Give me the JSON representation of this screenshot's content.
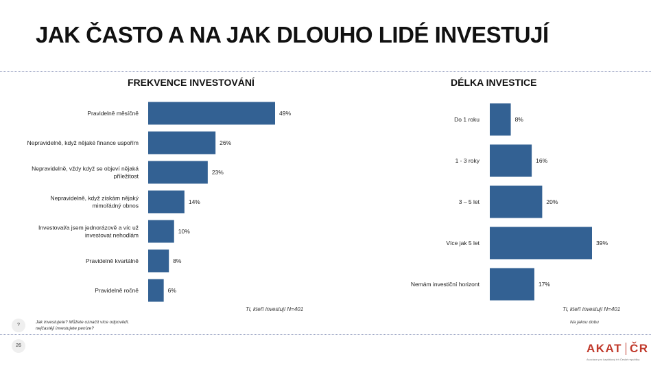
{
  "page": {
    "title": "JAK ČASTO A NA JAK DLOUHO LIDÉ INVESTUJÍ",
    "page_number": "26",
    "help_symbol": "?",
    "logo_left": "AKAT",
    "logo_right": "ČR",
    "logo_subtitle": "Asociace pro kapitálový trh České republiky",
    "accent_color": "#c0392b",
    "bar_color": "#336193"
  },
  "chart_data": [
    {
      "type": "bar",
      "orientation": "horizontal",
      "title": "FREKVENCE INVESTOVÁNÍ",
      "categories": [
        [
          "Pravidelně měsíčně"
        ],
        [
          "Nepravidelně, když nějaké finance uspořím"
        ],
        [
          "Nepravidelně, vždy když se objeví nějaká",
          "příležitost"
        ],
        [
          "Nepravidelně, když získám nějaký",
          "mimořádný obnos"
        ],
        [
          "Investoval/a jsem jednorázově a víc už",
          "investovat nehodlám"
        ],
        [
          "Pravidelně kvartálně"
        ],
        [
          "Pravidelně ročně"
        ]
      ],
      "values": [
        49,
        26,
        23,
        14,
        10,
        8,
        6
      ],
      "value_labels": [
        "49%",
        "26%",
        "23%",
        "14%",
        "10%",
        "8%",
        "6%"
      ],
      "unit": "%",
      "base_note": "Ti, kteří investují N=401",
      "question_note": [
        "Jak investujete?   Můžete označit více odpovědí.",
        "nejčastěji investujete peníze?"
      ]
    },
    {
      "type": "bar",
      "orientation": "horizontal",
      "title": "DÉLKA INVESTICE",
      "categories": [
        [
          "Do 1 roku"
        ],
        [
          "1 - 3 roky"
        ],
        [
          "3 – 5 let"
        ],
        [
          "Více jak 5 let"
        ],
        [
          "Nemám investiční horizont"
        ]
      ],
      "values": [
        8,
        16,
        20,
        39,
        17
      ],
      "value_labels": [
        "8%",
        "16%",
        "20%",
        "39%",
        "17%"
      ],
      "unit": "%",
      "base_note": "Ti, kteří investují N=401",
      "question_note": [
        "Na jakou dobu"
      ]
    }
  ]
}
